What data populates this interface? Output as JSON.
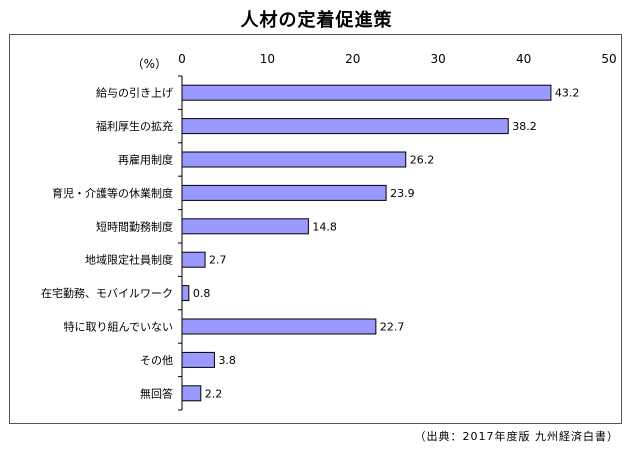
{
  "title": "人材の定着促進策",
  "source": "（出典：2017年度版 九州経済白書）",
  "chart_data": {
    "type": "bar",
    "orientation": "horizontal",
    "title": "人材の定着促進策",
    "unit_label": "（%）",
    "xlim": [
      0,
      50
    ],
    "xticks": [
      0,
      10,
      20,
      30,
      40,
      50
    ],
    "grid": false,
    "bar_color": "#9999ff",
    "categories": [
      "給与の引き上げ",
      "福利厚生の拡充",
      "再雇用制度",
      "育児・介護等の休業制度",
      "短時間勤務制度",
      "地域限定社員制度",
      "在宅勤務、モバイルワーク",
      "特に取り組んでいない",
      "その他",
      "無回答"
    ],
    "values": [
      43.2,
      38.2,
      26.2,
      23.9,
      14.8,
      2.7,
      0.8,
      22.7,
      3.8,
      2.2
    ],
    "value_labels": [
      "43.2",
      "38.2",
      "26.2",
      "23.9",
      "14.8",
      "2.7",
      "0.8",
      "22.7",
      "3.8",
      "2.2"
    ]
  }
}
